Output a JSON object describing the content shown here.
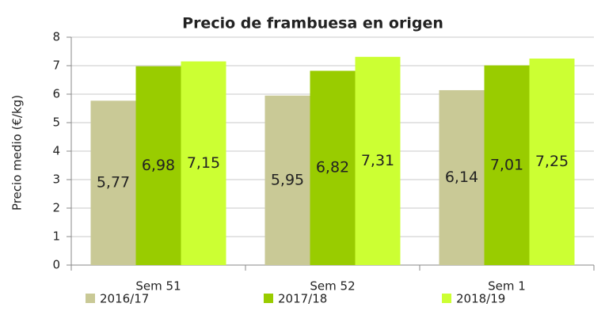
{
  "chart_data": {
    "type": "bar",
    "title": "Precio de frambuesa en origen",
    "ylabel": "Precio medio (€/kg)",
    "categories": [
      "Sem 51",
      "Sem 52",
      "Sem 1"
    ],
    "series": [
      {
        "name": "2016/17",
        "color": "#c9c996",
        "values": [
          5.77,
          5.95,
          6.14
        ],
        "value_labels": [
          "5,77",
          "5,95",
          "6,14"
        ]
      },
      {
        "name": "2017/18",
        "color": "#99cc00",
        "values": [
          6.98,
          6.82,
          7.01
        ],
        "value_labels": [
          "6,98",
          "6,82",
          "7,01"
        ]
      },
      {
        "name": "2018/19",
        "color": "#ccff33",
        "values": [
          7.15,
          7.31,
          7.25
        ],
        "value_labels": [
          "7,15",
          "7,31",
          "7,25"
        ]
      }
    ],
    "ylim": [
      0,
      8
    ],
    "yticks": [
      0,
      1,
      2,
      3,
      4,
      5,
      6,
      7,
      8
    ],
    "grid": true,
    "legend": "bottom"
  }
}
